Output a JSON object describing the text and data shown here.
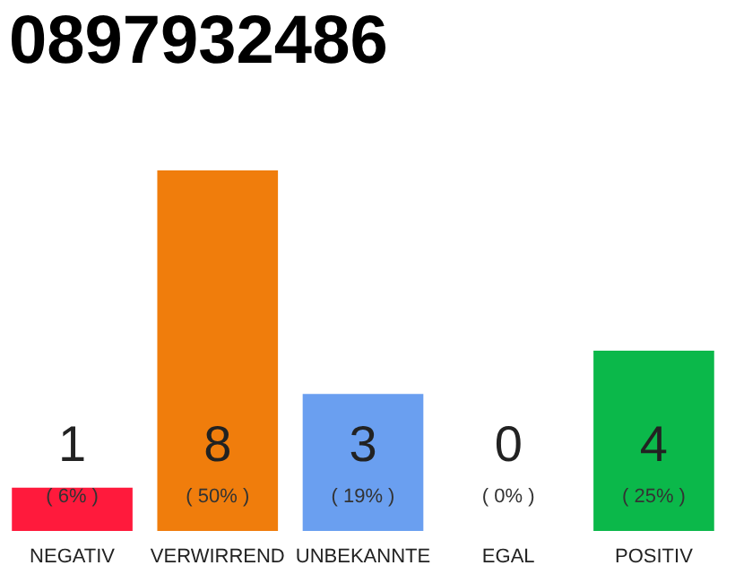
{
  "chart_data": {
    "type": "bar",
    "title": "0897932486",
    "categories": [
      "NEGATIV",
      "VERWIRREND",
      "UNBEKANNTE",
      "EGAL",
      "POSITIV"
    ],
    "values": [
      6,
      50,
      19,
      0,
      25
    ],
    "colors": [
      "#ff1a3c",
      "#f07d0c",
      "#6a9ff0",
      "#9a9a9a",
      "#0bb84a"
    ],
    "value_labels": [
      "( 6% )",
      "( 50% )",
      "( 19% )",
      "( 0% )",
      "( 25% )"
    ],
    "annotations": [
      "1",
      "8",
      "3",
      "0",
      "4"
    ]
  }
}
